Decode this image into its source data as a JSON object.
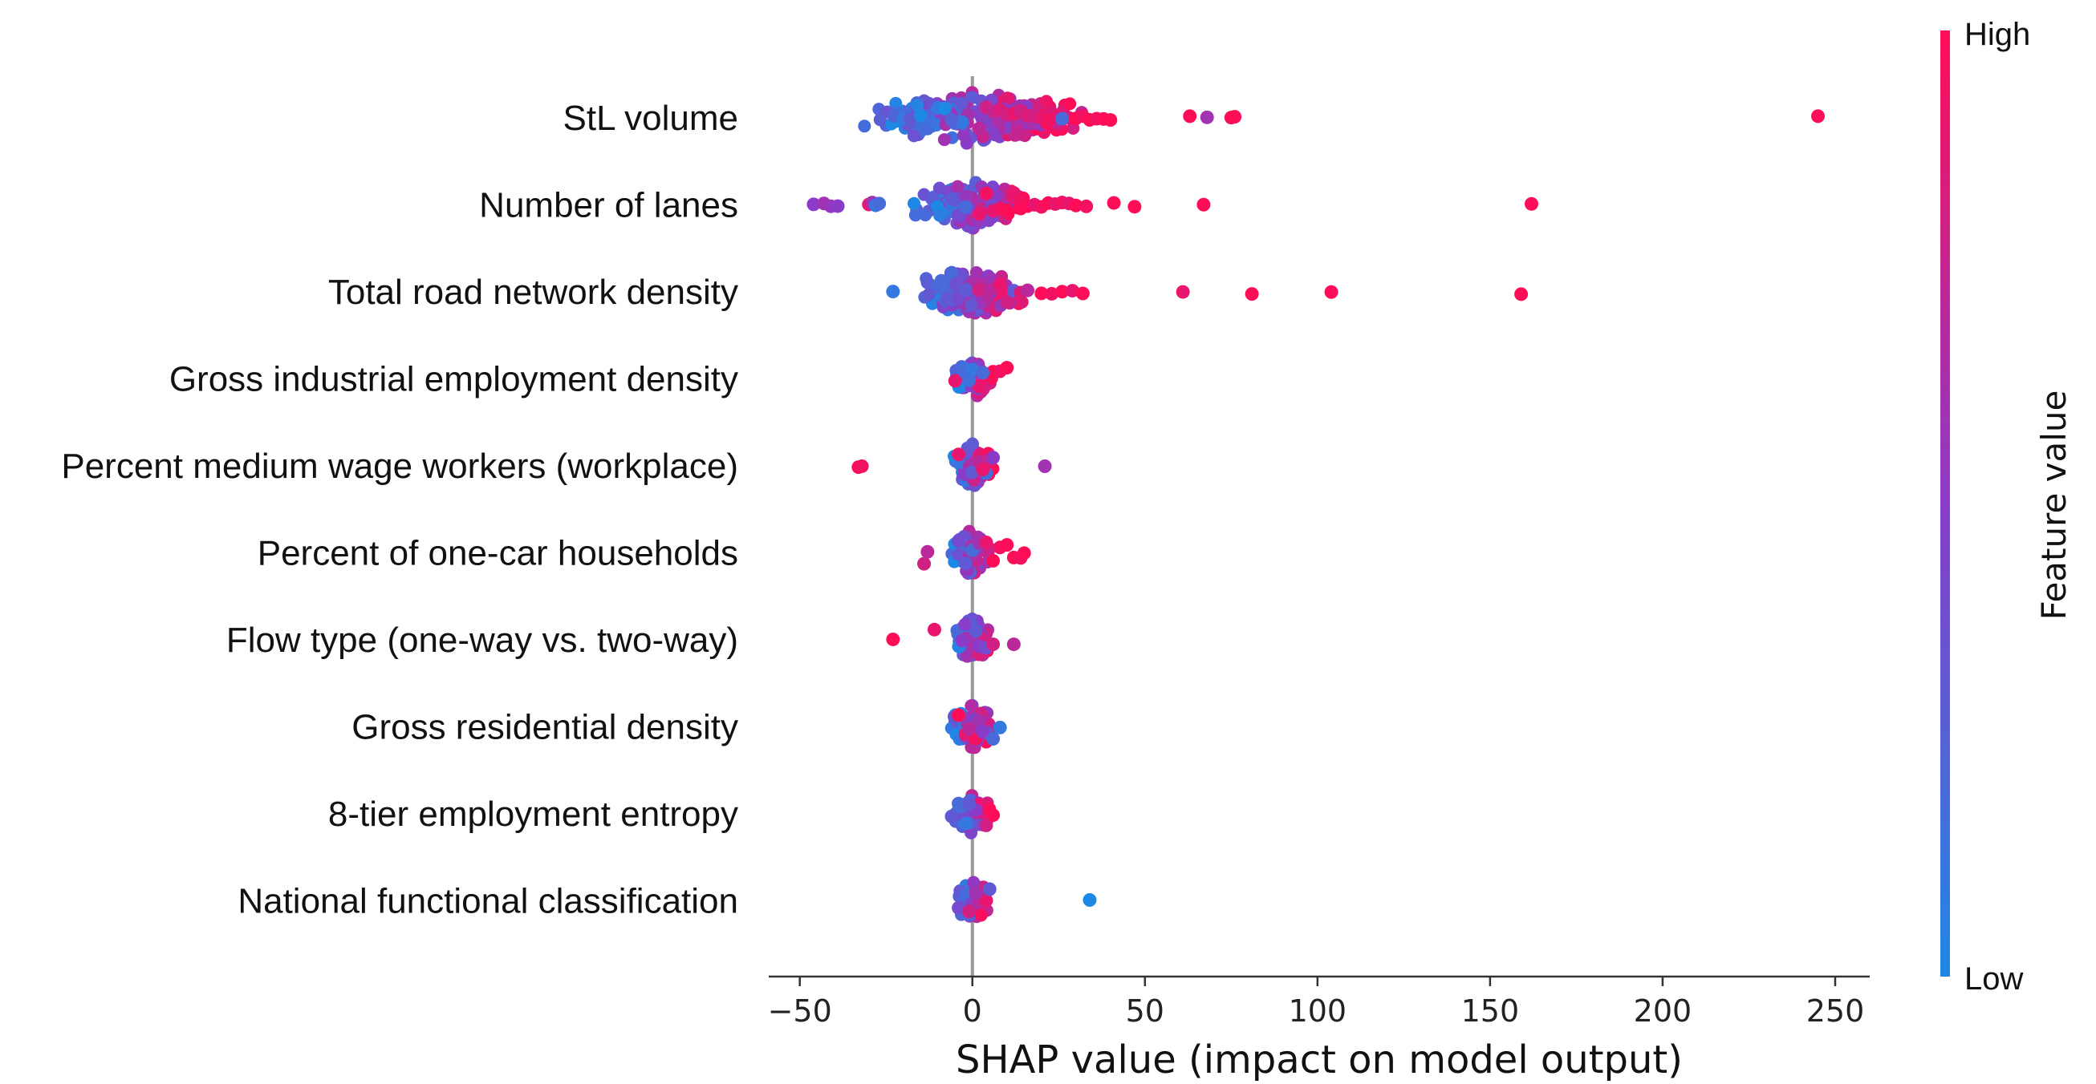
{
  "chart_data": {
    "type": "scatter",
    "subtype": "shap-beeswarm",
    "xlabel": "SHAP value (impact on model output)",
    "xlim": [
      -59,
      260
    ],
    "xticks": [
      -50,
      0,
      50,
      100,
      150,
      200,
      250
    ],
    "xtick_labels": [
      "−50",
      "0",
      "50",
      "100",
      "150",
      "200",
      "250"
    ],
    "zero_line": 0,
    "colorbar": {
      "title": "Feature value",
      "high_label": "High",
      "low_label": "Low",
      "high_color": "#ff0d57",
      "mid_color": "#8a3cc8",
      "low_color": "#1e88e5"
    },
    "features": [
      {
        "name": "StL volume",
        "points": [
          [
            -20,
            0.1
          ],
          [
            -18,
            0.3
          ],
          [
            -15,
            0.0
          ],
          [
            -13,
            0.2
          ],
          [
            -10,
            0.1
          ],
          [
            -8,
            0.0
          ],
          [
            -5,
            0.2
          ],
          [
            -3,
            0.1
          ],
          [
            -12,
            0.15
          ],
          [
            -6,
            0.25
          ],
          [
            2,
            0.7
          ],
          [
            4,
            0.8
          ],
          [
            6,
            0.75
          ],
          [
            8,
            0.85
          ],
          [
            10,
            0.8
          ],
          [
            12,
            0.9
          ],
          [
            14,
            0.8
          ],
          [
            16,
            0.85
          ],
          [
            18,
            0.8
          ],
          [
            20,
            0.9
          ],
          [
            22,
            0.95
          ],
          [
            25,
            0.9
          ],
          [
            28,
            0.85
          ],
          [
            30,
            1.0
          ],
          [
            32,
            0.95
          ],
          [
            34,
            1.0
          ],
          [
            36,
            0.95
          ],
          [
            38,
            1.0
          ],
          [
            40,
            1.0
          ],
          [
            26,
            0.2
          ],
          [
            63,
            1.0
          ],
          [
            68,
            0.6
          ],
          [
            75,
            1.0
          ],
          [
            76,
            1.0
          ],
          [
            245,
            1.0
          ]
        ]
      },
      {
        "name": "Number of lanes",
        "points": [
          [
            -46,
            0.5
          ],
          [
            -43,
            0.6
          ],
          [
            -41,
            0.55
          ],
          [
            -39,
            0.5
          ],
          [
            -30,
            0.9
          ],
          [
            -29,
            0.6
          ],
          [
            -28,
            0.1
          ],
          [
            -27,
            0.2
          ],
          [
            -6,
            0.3
          ],
          [
            -4,
            0.4
          ],
          [
            -2,
            0.2
          ],
          [
            2,
            0.9
          ],
          [
            4,
            0.95
          ],
          [
            6,
            0.9
          ],
          [
            8,
            0.95
          ],
          [
            10,
            1.0
          ],
          [
            12,
            0.9
          ],
          [
            14,
            0.95
          ],
          [
            16,
            1.0
          ],
          [
            18,
            0.9
          ],
          [
            20,
            0.95
          ],
          [
            22,
            1.0
          ],
          [
            24,
            0.9
          ],
          [
            26,
            0.95
          ],
          [
            28,
            0.9
          ],
          [
            30,
            1.0
          ],
          [
            33,
            0.95
          ],
          [
            41,
            1.0
          ],
          [
            47,
            1.0
          ],
          [
            67,
            1.0
          ],
          [
            162,
            1.0
          ]
        ]
      },
      {
        "name": "Total road network density",
        "points": [
          [
            -23,
            0.1
          ],
          [
            -9,
            0.2
          ],
          [
            -6,
            0.3
          ],
          [
            -4,
            0.4
          ],
          [
            -2,
            0.3
          ],
          [
            2,
            0.8
          ],
          [
            5,
            0.7
          ],
          [
            8,
            0.9
          ],
          [
            10,
            0.8
          ],
          [
            12,
            0.3
          ],
          [
            14,
            0.85
          ],
          [
            16,
            0.7
          ],
          [
            20,
            1.0
          ],
          [
            23,
            0.95
          ],
          [
            26,
            1.0
          ],
          [
            29,
            0.9
          ],
          [
            32,
            1.0
          ],
          [
            61,
            0.9
          ],
          [
            81,
            1.0
          ],
          [
            104,
            1.0
          ],
          [
            159,
            1.0
          ]
        ]
      },
      {
        "name": "Gross industrial employment density",
        "points": [
          [
            -5,
            0.9
          ],
          [
            -2,
            0.2
          ],
          [
            0,
            0.1
          ],
          [
            2,
            0.9
          ],
          [
            4,
            0.95
          ],
          [
            6,
            1.0
          ],
          [
            8,
            0.95
          ],
          [
            10,
            1.0
          ],
          [
            3,
            0.2
          ],
          [
            -1,
            0.15
          ]
        ]
      },
      {
        "name": "Percent medium wage workers (workplace)",
        "points": [
          [
            -33,
            1.0
          ],
          [
            -32,
            0.95
          ],
          [
            -4,
            0.9
          ],
          [
            -2,
            0.5
          ],
          [
            0,
            0.3
          ],
          [
            2,
            0.7
          ],
          [
            4,
            0.2
          ],
          [
            6,
            0.5
          ],
          [
            21,
            0.6
          ],
          [
            3,
            0.9
          ]
        ]
      },
      {
        "name": "Percent of one-car households",
        "points": [
          [
            -14,
            0.8
          ],
          [
            -13,
            0.7
          ],
          [
            -4,
            0.4
          ],
          [
            -2,
            0.3
          ],
          [
            0,
            0.2
          ],
          [
            2,
            0.6
          ],
          [
            4,
            0.9
          ],
          [
            6,
            1.0
          ],
          [
            8,
            0.95
          ],
          [
            10,
            1.0
          ],
          [
            12,
            1.0
          ],
          [
            14,
            0.95
          ],
          [
            15,
            1.0
          ]
        ]
      },
      {
        "name": "Flow type (one-way vs. two-way)",
        "points": [
          [
            -23,
            1.0
          ],
          [
            -11,
            0.9
          ],
          [
            -2,
            0.7
          ],
          [
            0,
            0.6
          ],
          [
            2,
            0.5
          ],
          [
            4,
            0.4
          ],
          [
            6,
            0.8
          ],
          [
            12,
            0.7
          ],
          [
            1,
            0.3
          ],
          [
            -3,
            0.5
          ]
        ]
      },
      {
        "name": "Gross residential density",
        "points": [
          [
            -4,
            1.0
          ],
          [
            -2,
            0.9
          ],
          [
            0,
            0.8
          ],
          [
            2,
            0.6
          ],
          [
            4,
            0.3
          ],
          [
            6,
            0.2
          ],
          [
            8,
            0.1
          ],
          [
            1,
            0.95
          ],
          [
            -1,
            0.7
          ],
          [
            3,
            0.5
          ]
        ]
      },
      {
        "name": "8-tier employment entropy",
        "points": [
          [
            -6,
            0.3
          ],
          [
            -4,
            0.2
          ],
          [
            -2,
            0.1
          ],
          [
            0,
            0.4
          ],
          [
            2,
            0.9
          ],
          [
            4,
            0.8
          ],
          [
            6,
            1.0
          ],
          [
            1,
            0.5
          ],
          [
            -1,
            0.3
          ]
        ]
      },
      {
        "name": "National functional classification",
        "points": [
          [
            -4,
            0.4
          ],
          [
            -2,
            0.2
          ],
          [
            0,
            0.5
          ],
          [
            2,
            0.7
          ],
          [
            4,
            0.9
          ],
          [
            5,
            0.3
          ],
          [
            34,
            0.0
          ],
          [
            1,
            0.6
          ],
          [
            -1,
            0.8
          ]
        ]
      }
    ]
  }
}
